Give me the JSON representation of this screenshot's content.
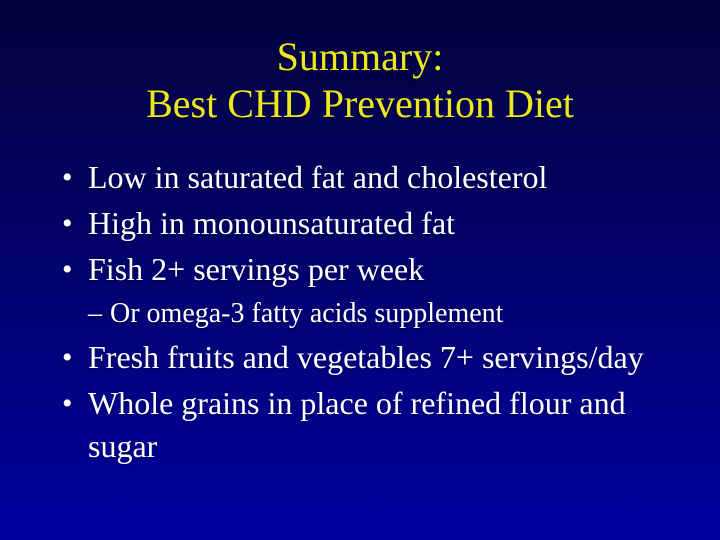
{
  "slide": {
    "title": {
      "line1": "Summary:",
      "line2": "Best CHD Prevention Diet"
    },
    "bullets": [
      {
        "level": 1,
        "marker": "•",
        "text": "Low in saturated fat and cholesterol"
      },
      {
        "level": 1,
        "marker": "•",
        "text": "High in monounsaturated fat"
      },
      {
        "level": 1,
        "marker": "•",
        "text": "Fish 2+ servings per week"
      },
      {
        "level": 2,
        "marker": "–",
        "text": "Or omega-3 fatty acids supplement"
      },
      {
        "level": 1,
        "marker": "•",
        "text": "Fresh fruits and vegetables 7+ servings/day"
      },
      {
        "level": 1,
        "marker": "•",
        "text": "Whole grains in place of refined flour and sugar"
      }
    ],
    "colors": {
      "background_top": "#03033C",
      "background_bottom": "#0101A0",
      "title_text": "#EDE71E",
      "body_text": "#FFFFFF"
    }
  }
}
